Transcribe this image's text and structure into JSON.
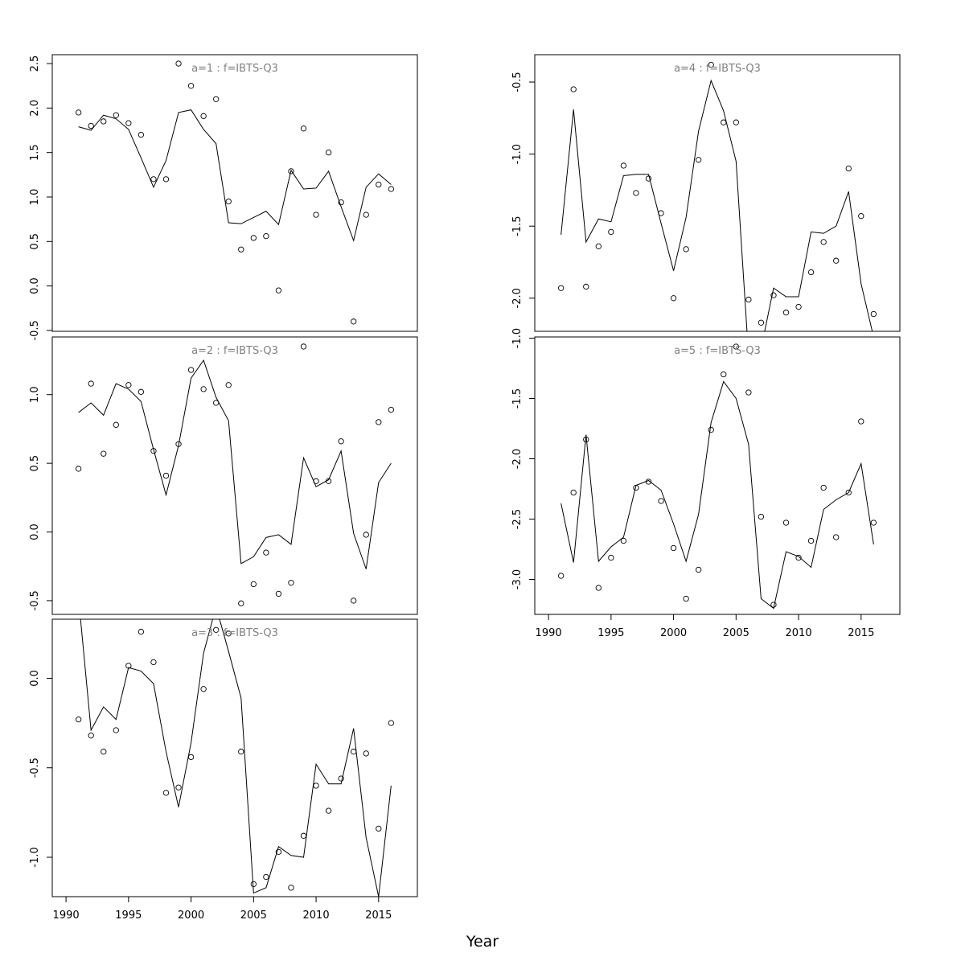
{
  "chart_data": {
    "type": "scatter",
    "xlabel": "Year",
    "xlim": [
      1988.9,
      2018.1
    ],
    "x_ticks": [
      1990,
      1995,
      2000,
      2005,
      2010,
      2015
    ],
    "years": [
      1991,
      1992,
      1993,
      1994,
      1995,
      1996,
      1997,
      1998,
      1999,
      2000,
      2001,
      2002,
      2003,
      2004,
      2005,
      2006,
      2007,
      2008,
      2009,
      2010,
      2011,
      2012,
      2013,
      2014,
      2015,
      2016
    ],
    "panels": [
      {
        "title": "a=1  :  f=IBTS-Q3",
        "ylim": [
          -0.51,
          2.6
        ],
        "y_ticks": [
          "2.5",
          "2.0",
          "1.5",
          "1.0",
          "0.5",
          "0.0",
          "-0.5"
        ],
        "y_tick_values": [
          2.5,
          2.0,
          1.5,
          1.0,
          0.5,
          0.0,
          -0.5
        ],
        "observed": [
          1.95,
          1.8,
          1.85,
          1.92,
          1.83,
          1.7,
          1.2,
          1.2,
          2.5,
          2.25,
          1.91,
          2.1,
          0.95,
          0.41,
          0.54,
          0.56,
          -0.05,
          1.29,
          1.77,
          0.8,
          1.5,
          0.94,
          -0.4,
          0.8,
          1.14,
          1.09
        ],
        "fitted": [
          1.79,
          1.75,
          1.92,
          1.88,
          1.76,
          1.44,
          1.11,
          1.41,
          1.95,
          1.98,
          1.76,
          1.6,
          0.71,
          0.7,
          0.77,
          0.84,
          0.69,
          1.3,
          1.09,
          1.1,
          1.29,
          0.89,
          0.51,
          1.11,
          1.26,
          1.14
        ]
      },
      {
        "title": "a=2  :  f=IBTS-Q3",
        "ylim": [
          -0.6,
          1.42
        ],
        "y_ticks": [
          "1.0",
          "0.5",
          "0.0",
          "-0.5"
        ],
        "y_tick_values": [
          1.0,
          0.5,
          0.0,
          -0.5
        ],
        "observed": [
          0.46,
          1.08,
          0.57,
          0.78,
          1.07,
          1.02,
          0.59,
          0.41,
          0.64,
          1.18,
          1.04,
          0.94,
          1.07,
          -0.52,
          -0.38,
          -0.15,
          -0.45,
          -0.37,
          1.35,
          0.37,
          0.37,
          0.66,
          -0.5,
          -0.02,
          0.8,
          0.89
        ],
        "fitted": [
          0.87,
          0.94,
          0.85,
          1.08,
          1.04,
          0.95,
          0.6,
          0.27,
          0.63,
          1.12,
          1.25,
          0.98,
          0.81,
          -0.23,
          -0.18,
          -0.04,
          -0.02,
          -0.09,
          0.54,
          0.33,
          0.38,
          0.59,
          -0.01,
          -0.27,
          0.36,
          0.5
        ]
      },
      {
        "title": "a=3  :  f=IBTS-Q3",
        "ylim": [
          -1.22,
          0.33
        ],
        "y_ticks": [
          "0.0",
          "-0.5",
          "-1.0"
        ],
        "y_tick_values": [
          0.0,
          -0.5,
          -1.0
        ],
        "observed": [
          -0.23,
          -0.32,
          -0.41,
          -0.29,
          0.07,
          0.26,
          0.09,
          -0.64,
          -0.61,
          -0.44,
          -0.06,
          0.27,
          0.25,
          -0.41,
          -1.15,
          -1.11,
          -0.97,
          -1.17,
          -0.88,
          -0.6,
          -0.74,
          -0.56,
          -0.41,
          -0.42,
          -0.84,
          -0.25
        ],
        "fitted": [
          0.45,
          -0.29,
          -0.16,
          -0.23,
          0.06,
          0.04,
          -0.03,
          -0.41,
          -0.72,
          -0.36,
          0.14,
          0.4,
          0.15,
          -0.11,
          -1.2,
          -1.17,
          -0.94,
          -0.99,
          -1.0,
          -0.48,
          -0.59,
          -0.59,
          -0.28,
          -0.89,
          -1.22,
          -0.6
        ]
      },
      {
        "title": "a=4  :  f=IBTS-Q3",
        "ylim": [
          -2.23,
          -0.31
        ],
        "y_ticks": [
          "-0.5",
          "-1.0",
          "-1.5",
          "-2.0"
        ],
        "y_tick_values": [
          -0.5,
          -1.0,
          -1.5,
          -2.0
        ],
        "observed": [
          -1.93,
          -0.55,
          -1.92,
          -1.64,
          -1.54,
          -1.08,
          -1.27,
          -1.17,
          -1.41,
          -2.0,
          -1.66,
          -1.04,
          -0.38,
          -0.78,
          -0.78,
          -2.01,
          -2.17,
          -1.98,
          -2.1,
          -2.06,
          -1.82,
          -1.61,
          -1.74,
          -1.1,
          -1.43,
          -2.11
        ],
        "fitted": [
          -1.56,
          -0.69,
          -1.61,
          -1.45,
          -1.47,
          -1.15,
          -1.14,
          -1.14,
          -1.48,
          -1.81,
          -1.44,
          -0.84,
          -0.49,
          -0.7,
          -1.05,
          -2.4,
          -2.35,
          -1.93,
          -1.99,
          -1.99,
          -1.54,
          -1.55,
          -1.5,
          -1.26,
          -1.9,
          -2.27
        ]
      },
      {
        "title": "a=5  :  f=IBTS-Q3",
        "ylim": [
          -3.29,
          -0.99
        ],
        "y_ticks": [
          "-1.0",
          "-1.5",
          "-2.0",
          "-2.5",
          "-3.0"
        ],
        "y_tick_values": [
          -1.0,
          -1.5,
          -2.0,
          -2.5,
          -3.0
        ],
        "observed": [
          -2.97,
          -2.28,
          -1.84,
          -3.07,
          -2.82,
          -2.68,
          -2.24,
          -2.19,
          -2.35,
          -2.74,
          -3.16,
          -2.92,
          -1.76,
          -1.3,
          -1.07,
          -1.45,
          -2.48,
          -3.21,
          -2.53,
          -2.82,
          -2.68,
          -2.24,
          -2.65,
          -2.28,
          -1.69,
          -2.53
        ],
        "fitted": [
          -2.37,
          -2.86,
          -1.8,
          -2.85,
          -2.73,
          -2.65,
          -2.22,
          -2.18,
          -2.26,
          -2.54,
          -2.85,
          -2.46,
          -1.7,
          -1.36,
          -1.5,
          -1.88,
          -3.16,
          -3.24,
          -2.77,
          -2.81,
          -2.9,
          -2.42,
          -2.34,
          -2.28,
          -2.04,
          -2.71
        ]
      }
    ]
  }
}
